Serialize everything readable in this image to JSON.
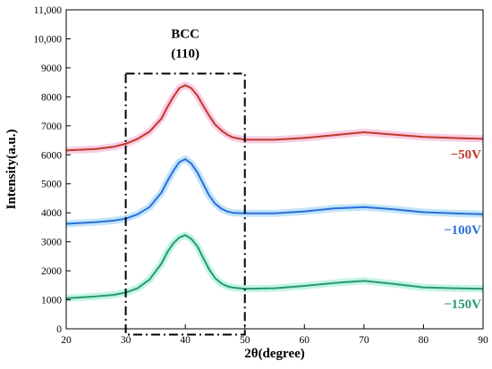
{
  "chart_data": {
    "type": "line",
    "xlabel": "2θ(degree)",
    "ylabel": "Intensity(a.u.)",
    "xlim": [
      20,
      90
    ],
    "ylim": [
      0,
      11000
    ],
    "x_ticks": [
      "20",
      "30",
      "40",
      "50",
      "60",
      "70",
      "80",
      "90"
    ],
    "y_ticks": [
      "0",
      "1000",
      "2000",
      "3000",
      "4000",
      "5000",
      "6000",
      "7000",
      "8000",
      "9000",
      "10,000",
      "11,000"
    ],
    "grid": false,
    "annotation": {
      "lines": [
        "BCC",
        "(110)"
      ],
      "x": 40,
      "box": {
        "x_range": [
          30,
          50
        ],
        "y_range": [
          -200,
          8800
        ],
        "style": "dash-dot"
      }
    },
    "series": [
      {
        "name": "−50V",
        "color": "#c0392b",
        "glow": "#f7b8d8",
        "x": [
          20,
          25,
          28,
          30,
          32,
          34,
          36,
          37,
          38,
          39,
          40,
          41,
          42,
          43,
          44,
          45,
          46,
          47,
          48,
          50,
          55,
          60,
          65,
          70,
          75,
          80,
          85,
          90
        ],
        "y": [
          6150,
          6200,
          6280,
          6380,
          6550,
          6800,
          7250,
          7650,
          8000,
          8300,
          8400,
          8300,
          8050,
          7700,
          7350,
          7050,
          6850,
          6700,
          6600,
          6520,
          6520,
          6580,
          6680,
          6780,
          6700,
          6620,
          6580,
          6550
        ]
      },
      {
        "name": "−100V",
        "color": "#2a6fd8",
        "glow": "#a8d8f8",
        "x": [
          20,
          25,
          28,
          30,
          32,
          34,
          36,
          37,
          38,
          39,
          40,
          41,
          42,
          43,
          44,
          45,
          46,
          47,
          48,
          50,
          55,
          60,
          65,
          70,
          75,
          80,
          85,
          90
        ],
        "y": [
          3620,
          3680,
          3730,
          3800,
          3950,
          4200,
          4700,
          5100,
          5450,
          5750,
          5850,
          5700,
          5400,
          5000,
          4600,
          4320,
          4150,
          4050,
          4000,
          3980,
          3980,
          4050,
          4150,
          4200,
          4120,
          4020,
          3980,
          3950
        ]
      },
      {
        "name": "−150V",
        "color": "#2a9a6a",
        "glow": "#a8f0d8",
        "x": [
          20,
          25,
          28,
          30,
          32,
          34,
          36,
          37,
          38,
          39,
          40,
          41,
          42,
          43,
          44,
          45,
          46,
          47,
          48,
          50,
          55,
          60,
          65,
          70,
          75,
          80,
          85,
          90
        ],
        "y": [
          1050,
          1120,
          1170,
          1250,
          1400,
          1700,
          2250,
          2650,
          2950,
          3150,
          3230,
          3100,
          2850,
          2450,
          2050,
          1750,
          1570,
          1470,
          1420,
          1380,
          1400,
          1480,
          1580,
          1650,
          1550,
          1430,
          1400,
          1380
        ]
      }
    ]
  }
}
